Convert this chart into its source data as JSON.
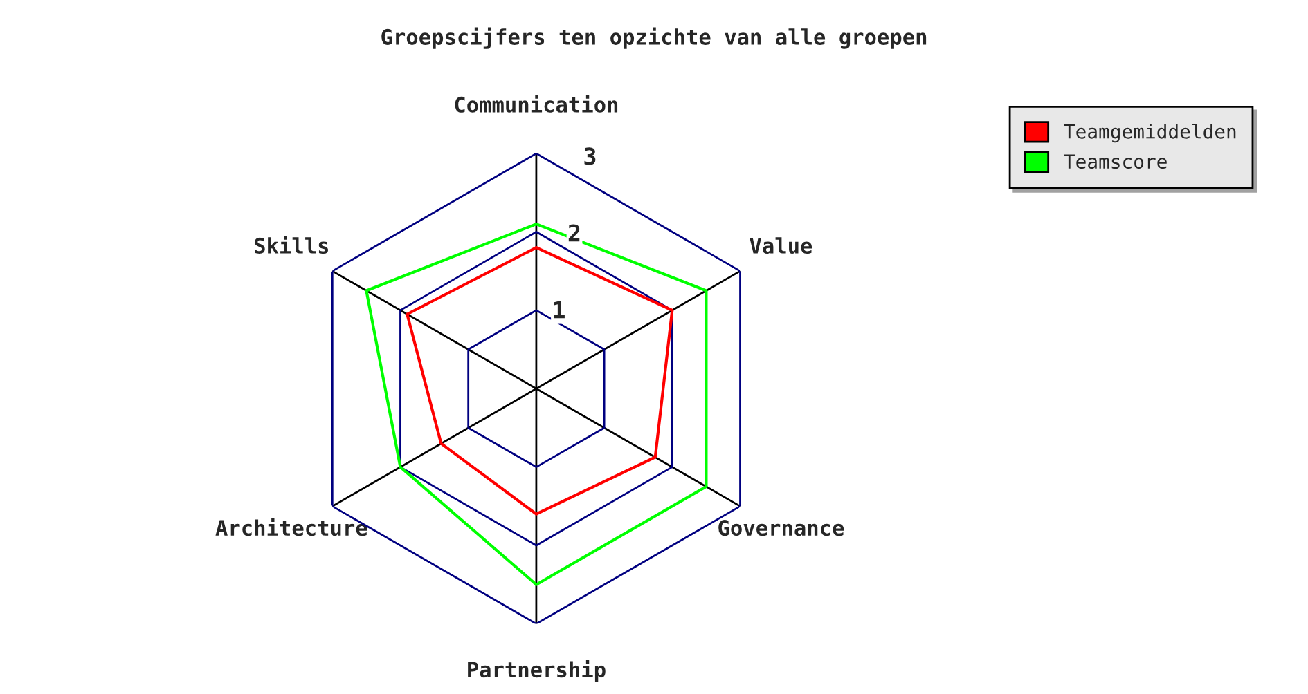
{
  "chart_data": {
    "type": "radar",
    "title": "Groepscijfers ten opzichte van alle groepen",
    "categories": [
      "Communication",
      "Value",
      "Governance",
      "Partnership",
      "Architecture",
      "Skills"
    ],
    "series": [
      {
        "name": "Teamgemiddelden",
        "color": "#ff0000",
        "values": [
          1.8,
          2.0,
          1.75,
          1.6,
          1.4,
          1.9
        ]
      },
      {
        "name": "Teamscore",
        "color": "#00ff00",
        "values": [
          2.1,
          2.5,
          2.5,
          2.5,
          2.0,
          2.5
        ]
      }
    ],
    "ylim": [
      0,
      3
    ],
    "yticks": [
      1,
      2,
      3
    ],
    "grid": true,
    "legend": "top right"
  }
}
